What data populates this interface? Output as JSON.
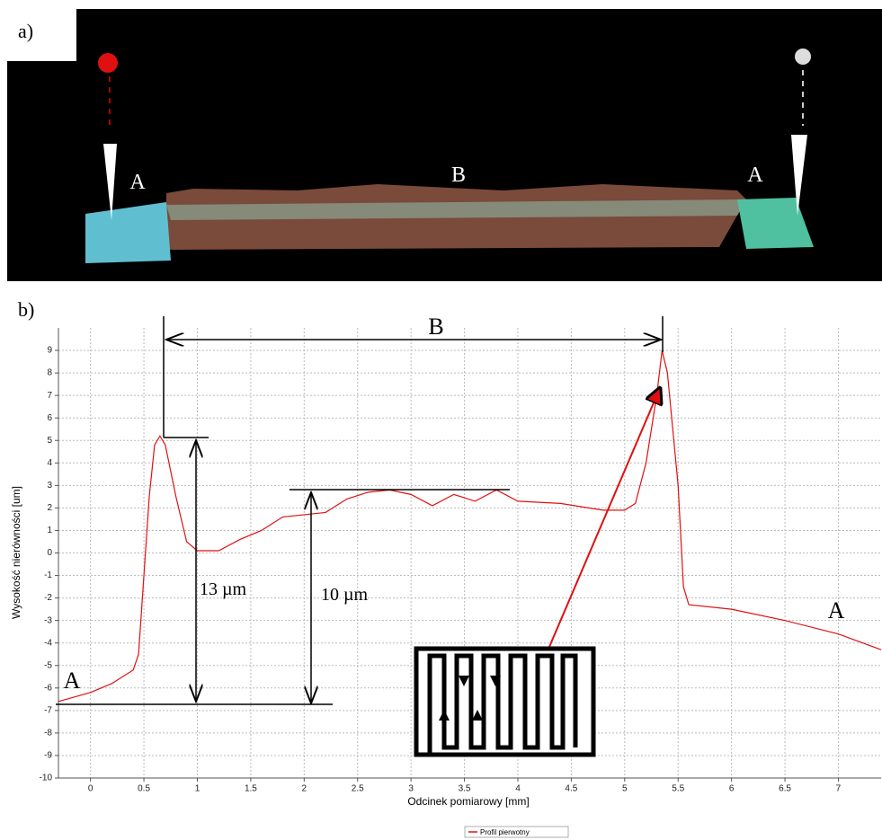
{
  "chart_data": {
    "type": "line",
    "panel_a_label": "a)",
    "panel_b_label": "b)",
    "image_labels": [
      "A",
      "B",
      "A"
    ],
    "xlabel": "Odcinek pomiarowy     [mm]",
    "ylabel": "Wysokość nierówności [um]",
    "annotations": [
      "B",
      "A",
      "A",
      "13 µm",
      "10 µm"
    ],
    "xlim": [
      -0.3,
      7.4
    ],
    "ylim": [
      -10,
      10
    ],
    "xticks": [
      0,
      0.5,
      1,
      1.5,
      2,
      2.5,
      3,
      3.5,
      4,
      4.5,
      5,
      5.5,
      6,
      6.5,
      7
    ],
    "yticks": [
      -10,
      -9,
      -8,
      -7,
      -6,
      -5,
      -4,
      -3,
      -2,
      -1,
      0,
      1,
      2,
      3,
      4,
      5,
      6,
      7,
      8,
      9
    ],
    "grid": true,
    "series": [
      {
        "name": "Profil pierwotny",
        "color": "#e01010",
        "x": [
          -0.3,
          0,
          0.2,
          0.4,
          0.45,
          0.5,
          0.55,
          0.6,
          0.65,
          0.7,
          0.8,
          0.9,
          1.0,
          1.2,
          1.4,
          1.6,
          1.8,
          2.0,
          2.2,
          2.4,
          2.6,
          2.8,
          3.0,
          3.2,
          3.4,
          3.6,
          3.8,
          4.0,
          4.4,
          4.8,
          5.0,
          5.1,
          5.2,
          5.3,
          5.35,
          5.4,
          5.5,
          5.55,
          5.6,
          6.0,
          6.5,
          7.0,
          7.4
        ],
        "values": [
          -6.6,
          -6.2,
          -5.8,
          -5.2,
          -4.5,
          -1,
          2.5,
          4.8,
          5.2,
          4.8,
          2.5,
          0.5,
          0.1,
          0.1,
          0.6,
          1.0,
          1.6,
          1.7,
          1.8,
          2.4,
          2.7,
          2.8,
          2.6,
          2.1,
          2.6,
          2.3,
          2.8,
          2.3,
          2.2,
          1.9,
          1.9,
          2.2,
          4,
          7,
          9,
          8,
          3,
          -1.5,
          -2.3,
          -2.5,
          -3.0,
          -3.6,
          -4.3
        ]
      }
    ]
  }
}
